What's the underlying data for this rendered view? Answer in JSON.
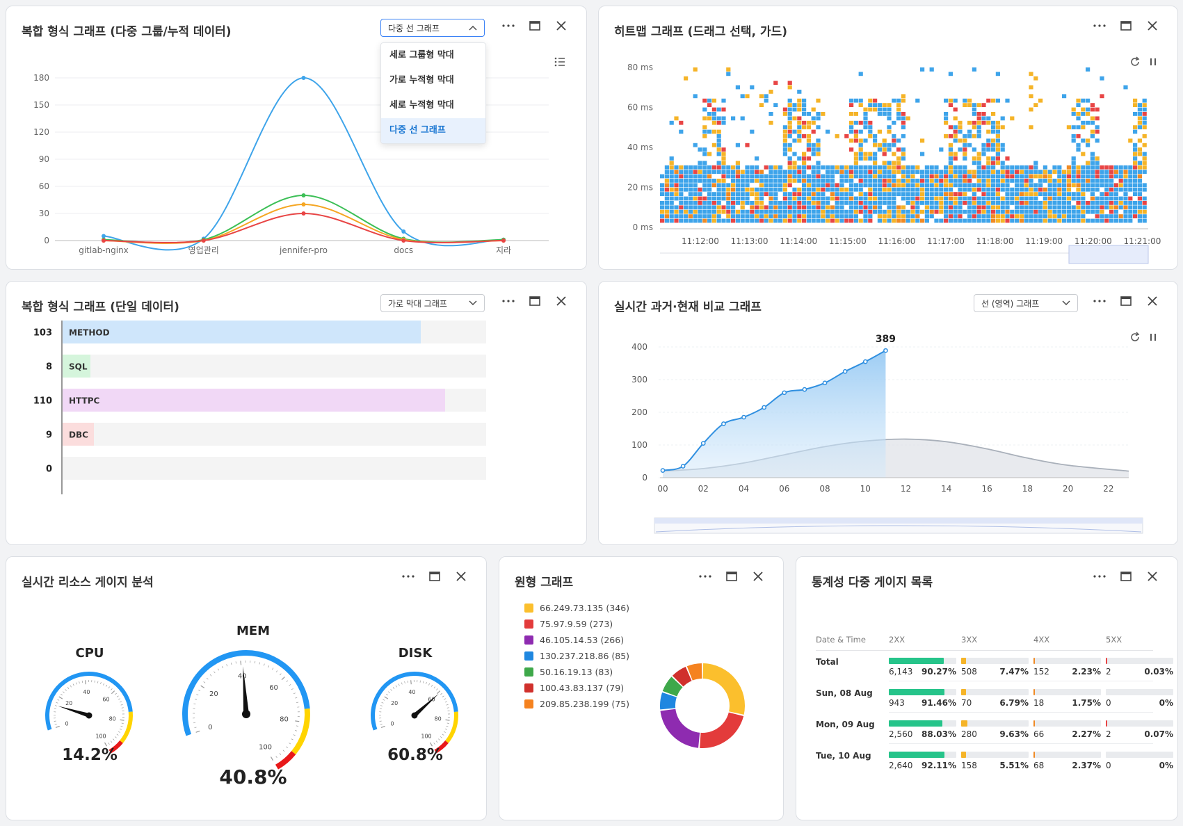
{
  "panel1": {
    "title": "복합 형식 그래프 (다중 그룹/누적 데이터)",
    "select_value": "다중 선 그래프",
    "options": [
      "세로 그룹형 막대",
      "가로 누적형 막대",
      "세로 누적형 막대",
      "다중 선 그래프"
    ],
    "selected_option": "다중 선 그래프",
    "chart_data": {
      "type": "line",
      "categories": [
        "gitlab-nginx",
        "영업관리",
        "jennifer-pro",
        "docs",
        "지라"
      ],
      "yticks": [
        "0",
        "30",
        "60",
        "90",
        "120",
        "150",
        "180"
      ],
      "ylim": [
        0,
        180
      ],
      "series": [
        {
          "name": "blue",
          "color": "#3ea4ea",
          "values": [
            5,
            2,
            180,
            10,
            1
          ]
        },
        {
          "name": "green",
          "color": "#3cbf56",
          "values": [
            1,
            1,
            50,
            2,
            1
          ]
        },
        {
          "name": "orange",
          "color": "#f5a623",
          "values": [
            0,
            0,
            40,
            1,
            0
          ]
        },
        {
          "name": "red",
          "color": "#e84545",
          "values": [
            0,
            0,
            30,
            0,
            0
          ]
        }
      ]
    }
  },
  "panel2": {
    "title": "히트맵 그래프 (드래그 선택, 가드)",
    "chart_data": {
      "type": "heatmap",
      "yticks": [
        "80 ms",
        "60 ms",
        "40 ms",
        "20 ms",
        "0 ms"
      ],
      "xticks": [
        "11:12:00",
        "11:13:00",
        "11:14:00",
        "11:15:00",
        "11:16:00",
        "11:17:00",
        "11:18:00",
        "11:19:00",
        "11:20:00",
        "11:21:00"
      ],
      "ylim": [
        0,
        80
      ],
      "colors": [
        "#3ea4ea",
        "#f5b428",
        "#e84545",
        "#f08a24"
      ]
    }
  },
  "panel3": {
    "title": "복합 형식 그래프 (단일 데이터)",
    "select_value": "가로 막대 그래프",
    "chart_data": {
      "type": "bar",
      "orientation": "horizontal",
      "categories": [
        "METHOD",
        "SQL",
        "HTTPC",
        "DBC",
        ""
      ],
      "values": [
        103,
        8,
        110,
        9,
        0
      ],
      "value_labels": [
        "103",
        "8",
        "110",
        "9",
        "0"
      ],
      "max": 122,
      "colors": [
        "#cfe6fb",
        "#d5f5dc",
        "#f1d8f6",
        "#fbdddd",
        "#eeeeee"
      ]
    }
  },
  "panel4": {
    "title": "실시간 과거·현재 비교 그래프",
    "select_value": "선 (영역) 그래프",
    "peak_label": "389",
    "chart_data": {
      "type": "area",
      "xticks": [
        "00",
        "02",
        "04",
        "06",
        "08",
        "10",
        "12",
        "14",
        "16",
        "18",
        "20",
        "22"
      ],
      "yticks": [
        "0",
        "100",
        "200",
        "300",
        "400"
      ],
      "ylim": [
        0,
        400
      ],
      "current": {
        "x": [
          0,
          1,
          2,
          3,
          4,
          5,
          6,
          7,
          8,
          9,
          10,
          11
        ],
        "values": [
          22,
          35,
          105,
          165,
          185,
          215,
          260,
          270,
          290,
          325,
          355,
          389
        ]
      },
      "past": {
        "x": [
          0,
          2,
          4,
          6,
          8,
          10,
          12,
          14,
          16,
          18,
          20,
          23
        ],
        "values": [
          20,
          28,
          45,
          70,
          95,
          112,
          118,
          110,
          88,
          60,
          38,
          20
        ]
      }
    }
  },
  "panel5": {
    "title": "실시간 리소스 게이지 분석",
    "gauges": [
      {
        "name": "CPU",
        "value_text": "14.2%",
        "value": 14.2
      },
      {
        "name": "MEM",
        "value_text": "40.8%",
        "value": 40.8
      },
      {
        "name": "DISK",
        "value_text": "60.8%",
        "value": 60.8
      }
    ],
    "ticks": [
      "0",
      "20",
      "40",
      "60",
      "80",
      "100"
    ]
  },
  "panel6": {
    "title": "원형 그래프",
    "chart_data": {
      "type": "pie",
      "labels": [
        "66.249.73.135 (346)",
        "75.97.9.59 (273)",
        "46.105.14.53 (266)",
        "130.237.218.86 (85)",
        "50.16.19.13 (83)",
        "100.43.83.137 (79)",
        "209.85.238.199 (75)"
      ],
      "values": [
        346,
        273,
        266,
        85,
        83,
        79,
        75
      ],
      "colors": [
        "#fbbf2d",
        "#e33b3b",
        "#8e2bb0",
        "#1f87e0",
        "#3ea84a",
        "#d0302c",
        "#f5821f"
      ]
    }
  },
  "panel7": {
    "title": "통계성 다중 게이지 목록",
    "headers": [
      "Date & Time",
      "2XX",
      "3XX",
      "4XX",
      "5XX"
    ],
    "colors": [
      "#26c48a",
      "#f5b428",
      "#f08a24",
      "#e84545"
    ],
    "rows": [
      {
        "label": "Total",
        "cells": [
          {
            "count": "6,143",
            "pct": "90.27%",
            "p": 90.27
          },
          {
            "count": "508",
            "pct": "7.47%",
            "p": 7.47
          },
          {
            "count": "152",
            "pct": "2.23%",
            "p": 2.23
          },
          {
            "count": "2",
            "pct": "0.03%",
            "p": 0.03
          }
        ]
      },
      {
        "label": "Sun, 08 Aug",
        "cells": [
          {
            "count": "943",
            "pct": "91.46%",
            "p": 91.46
          },
          {
            "count": "70",
            "pct": "6.79%",
            "p": 6.79
          },
          {
            "count": "18",
            "pct": "1.75%",
            "p": 1.75
          },
          {
            "count": "0",
            "pct": "0%",
            "p": 0
          }
        ]
      },
      {
        "label": "Mon, 09 Aug",
        "cells": [
          {
            "count": "2,560",
            "pct": "88.03%",
            "p": 88.03
          },
          {
            "count": "280",
            "pct": "9.63%",
            "p": 9.63
          },
          {
            "count": "66",
            "pct": "2.27%",
            "p": 2.27
          },
          {
            "count": "2",
            "pct": "0.07%",
            "p": 0.07
          }
        ]
      },
      {
        "label": "Tue, 10 Aug",
        "cells": [
          {
            "count": "2,640",
            "pct": "92.11%",
            "p": 92.11
          },
          {
            "count": "158",
            "pct": "5.51%",
            "p": 5.51
          },
          {
            "count": "68",
            "pct": "2.37%",
            "p": 2.37
          },
          {
            "count": "0",
            "pct": "0%",
            "p": 0
          }
        ]
      }
    ]
  }
}
